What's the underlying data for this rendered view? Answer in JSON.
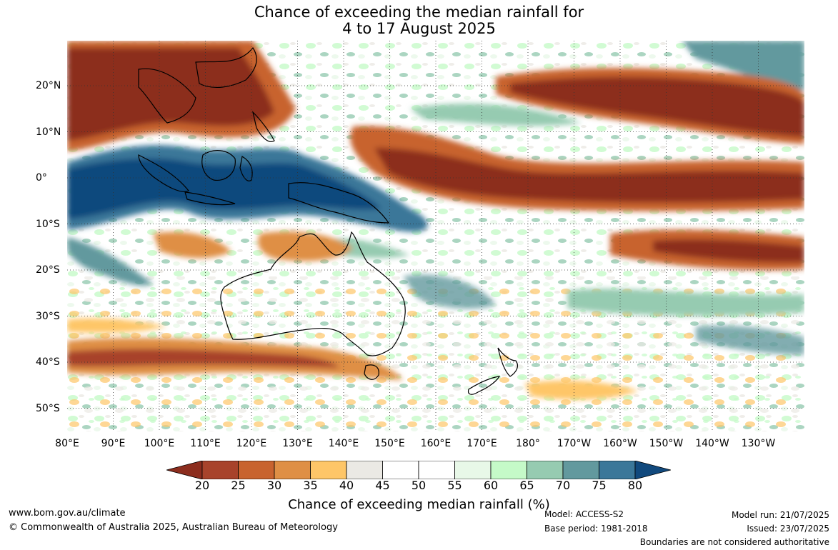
{
  "title": {
    "line1": "Chance of exceeding the median rainfall for",
    "line2": "4 to 17 August 2025"
  },
  "map": {
    "lon_labels": [
      "80°E",
      "90°E",
      "100°E",
      "110°E",
      "120°E",
      "130°E",
      "140°E",
      "150°E",
      "160°E",
      "170°E",
      "180°",
      "170°W",
      "160°W",
      "150°W",
      "140°W",
      "130°W"
    ],
    "lat_labels": [
      "20°N",
      "10°N",
      "0°",
      "10°S",
      "20°S",
      "30°S",
      "40°S",
      "50°S"
    ],
    "land_outline_color": "#000000",
    "grid": "dotted"
  },
  "colorbar": {
    "label": "Chance of exceeding median rainfall (%)",
    "ticks": [
      "20",
      "25",
      "30",
      "35",
      "40",
      "45",
      "50",
      "55",
      "60",
      "65",
      "70",
      "75",
      "80"
    ],
    "colors": [
      "#8c2d1e",
      "#a8432b",
      "#c8632f",
      "#df8f45",
      "#fec668",
      "#ebe9e4",
      "#ffffff",
      "#ffffff",
      "#e8f8e8",
      "#c5fac8",
      "#96cbb1",
      "#62999e",
      "#3b7799",
      "#11497d"
    ]
  },
  "footer": {
    "website": "www.bom.gov.au/climate",
    "copyright": "© Commonwealth of Australia 2025, Australian Bureau of Meteorology",
    "model": "Model: ACCESS-S2",
    "base_period": "Base period: 1981-2018",
    "model_run": "Model run: 21/07/2025",
    "issued": "Issued: 23/07/2025",
    "disclaimer": "Boundaries are not considered authoritative"
  }
}
